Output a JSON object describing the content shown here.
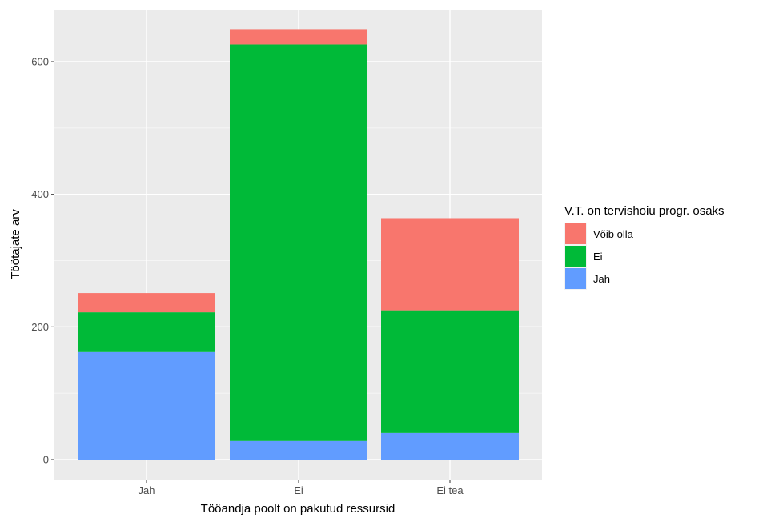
{
  "chart_data": {
    "type": "bar",
    "stacked": true,
    "xlabel": "Tööandja poolt on pakutud ressursid",
    "ylabel": "Töötajate arv",
    "categories": [
      "Jah",
      "Ei",
      "Ei tea"
    ],
    "ylim": [
      0,
      650
    ],
    "yticks": [
      0,
      200,
      400,
      600
    ],
    "grid": true,
    "legend": {
      "title": "V.T. on tervishoiu progr. osaks",
      "position": "right"
    },
    "series": [
      {
        "name": "Jah",
        "color": "#619CFF",
        "values": [
          162,
          28,
          40
        ]
      },
      {
        "name": "Ei",
        "color": "#00BA38",
        "values": [
          60,
          598,
          185
        ]
      },
      {
        "name": "Võib olla",
        "color": "#F8766D",
        "values": [
          29,
          23,
          139
        ]
      }
    ],
    "legend_order": [
      "Võib olla",
      "Ei",
      "Jah"
    ]
  }
}
